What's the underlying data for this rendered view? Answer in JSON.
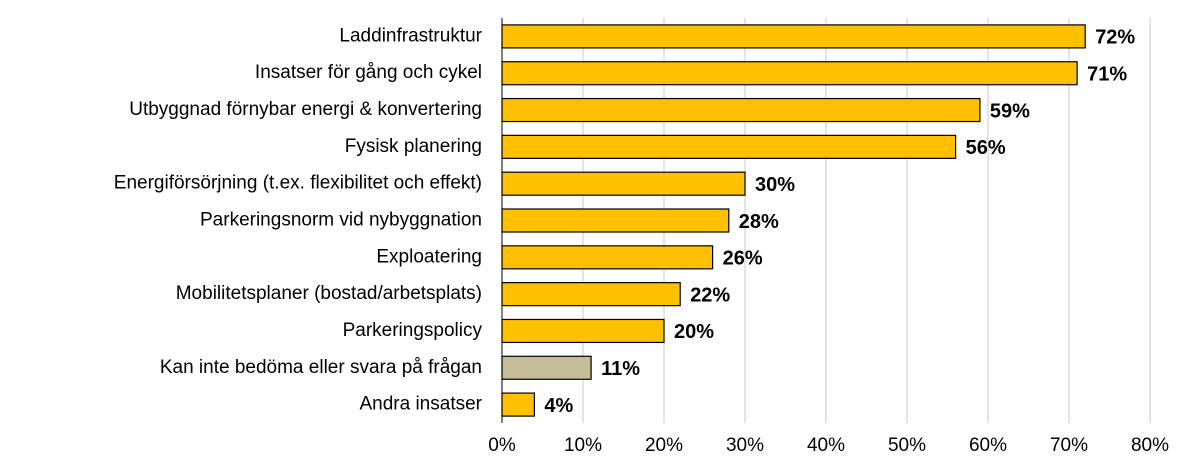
{
  "chart_data": {
    "type": "bar",
    "orientation": "horizontal",
    "categories": [
      "Laddinfrastruktur",
      "Insatser för gång och cykel",
      "Utbyggnad förnybar energi & konvertering",
      "Fysisk planering",
      "Energiförsörjning (t.ex. flexibilitet och effekt)",
      "Parkeringsnorm vid nybyggnation",
      "Exploatering",
      "Mobilitetsplaner (bostad/arbetsplats)",
      "Parkeringspolicy",
      "Kan inte bedöma eller svara på frågan",
      "Andra insatser"
    ],
    "values": [
      72,
      71,
      59,
      56,
      30,
      28,
      26,
      22,
      20,
      11,
      4
    ],
    "value_labels": [
      "72%",
      "71%",
      "59%",
      "56%",
      "30%",
      "28%",
      "26%",
      "22%",
      "20%",
      "11%",
      "4%"
    ],
    "colors": [
      "#ffc000",
      "#ffc000",
      "#ffc000",
      "#ffc000",
      "#ffc000",
      "#ffc000",
      "#ffc000",
      "#ffc000",
      "#ffc000",
      "#c4bd97",
      "#ffc000"
    ],
    "xlim": [
      0,
      80
    ],
    "xticks": [
      {
        "value": 0,
        "label": "0%"
      },
      {
        "value": 10,
        "label": "10%"
      },
      {
        "value": 20,
        "label": "20%"
      },
      {
        "value": 30,
        "label": "30%"
      },
      {
        "value": 40,
        "label": "40%"
      },
      {
        "value": 50,
        "label": "50%"
      },
      {
        "value": 60,
        "label": "60%"
      },
      {
        "value": 70,
        "label": "70%"
      },
      {
        "value": 80,
        "label": "80%"
      }
    ],
    "grid": true
  }
}
